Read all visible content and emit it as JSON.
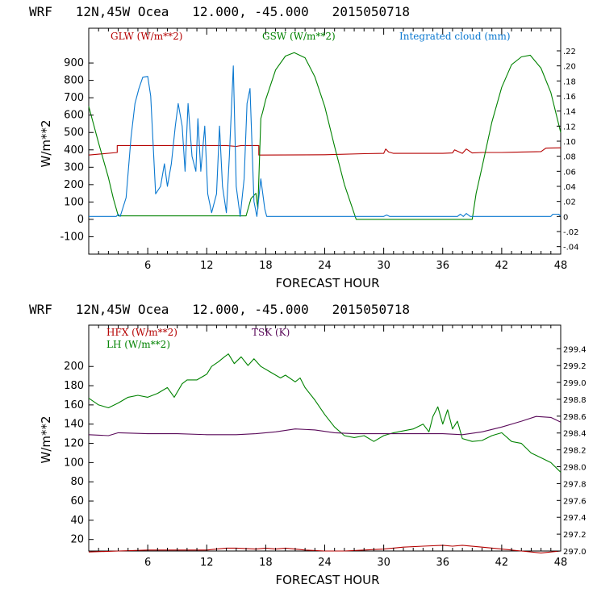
{
  "chart_data": [
    {
      "type": "line",
      "title": "WRF   12N,45W Ocea   12.000, -45.000   2015050718",
      "xlabel": "FORECAST HOUR",
      "ylabel": "W/m**2",
      "xlim": [
        0,
        48
      ],
      "xticks": [
        6,
        12,
        18,
        24,
        30,
        36,
        42,
        48
      ],
      "ylim": [
        -200,
        1100
      ],
      "yticks": [
        -100,
        0,
        100,
        200,
        300,
        400,
        500,
        600,
        700,
        800,
        900
      ],
      "y2lim": [
        -0.05,
        0.25
      ],
      "y2ticks": [
        "-.04",
        "-.02",
        "0",
        ".02",
        ".04",
        ".06",
        ".08",
        ".10",
        ".12",
        ".14",
        ".16",
        ".18",
        ".20",
        ".22"
      ],
      "y2ticks_values": [
        -0.04,
        -0.02,
        0,
        0.02,
        0.04,
        0.06,
        0.08,
        0.1,
        0.12,
        0.14,
        0.16,
        0.18,
        0.2,
        0.22
      ],
      "series": [
        {
          "name": "GLW (W/m**2)",
          "color": "#b40000",
          "axis": "left",
          "x": [
            0,
            2.9,
            2.9,
            9,
            14,
            15,
            15.5,
            17.3,
            17.3,
            24,
            28,
            30,
            30.2,
            30.5,
            31,
            36,
            37,
            37.2,
            38,
            38.4,
            39,
            40,
            42,
            46,
            46.5,
            48
          ],
          "y": [
            370,
            385,
            425,
            425,
            425,
            420,
            425,
            425,
            370,
            372,
            378,
            380,
            405,
            388,
            380,
            380,
            382,
            400,
            380,
            405,
            382,
            385,
            385,
            390,
            410,
            412
          ]
        },
        {
          "name": "GSW (W/m**2)",
          "color": "#008200",
          "axis": "left",
          "x": [
            0,
            1,
            2,
            2.5,
            3,
            16,
            16.5,
            17,
            17.2,
            17.5,
            17.7,
            18,
            19,
            20,
            20.9,
            22,
            23,
            24,
            25,
            26,
            27.2,
            39,
            39.4,
            40,
            41,
            42,
            43,
            44,
            44.9,
            46,
            47,
            48
          ],
          "y": [
            650,
            440,
            240,
            120,
            20,
            20,
            120,
            150,
            60,
            580,
            620,
            690,
            860,
            940,
            960,
            930,
            820,
            650,
            420,
            200,
            0,
            0,
            150,
            300,
            560,
            760,
            890,
            935,
            945,
            870,
            730,
            500
          ]
        },
        {
          "name": "Integrated cloud (mm)",
          "color": "#0a78d0",
          "axis": "right",
          "x": [
            0,
            2.8,
            3.0,
            3.2,
            3.8,
            4.3,
            4.7,
            5.1,
            5.5,
            6.0,
            6.3,
            6.8,
            7.3,
            7.7,
            8.0,
            8.4,
            8.8,
            9.1,
            9.5,
            9.8,
            10.1,
            10.5,
            10.9,
            11.1,
            11.4,
            11.8,
            12.1,
            12.5,
            13.0,
            13.3,
            13.6,
            14.0,
            14.3,
            14.7,
            15.0,
            15.4,
            15.8,
            16.1,
            16.4,
            16.8,
            17.1,
            17.5,
            17.9,
            18.1,
            30,
            30.3,
            30.6,
            37.5,
            37.8,
            38.1,
            38.4,
            38.8,
            39.2,
            47,
            47.2,
            47.8,
            48
          ],
          "y": [
            0.0,
            0.0,
            0.003,
            0.0,
            0.025,
            0.105,
            0.15,
            0.17,
            0.185,
            0.186,
            0.16,
            0.03,
            0.04,
            0.07,
            0.04,
            0.07,
            0.12,
            0.15,
            0.12,
            0.06,
            0.15,
            0.08,
            0.06,
            0.13,
            0.06,
            0.12,
            0.03,
            0.005,
            0.03,
            0.12,
            0.04,
            0.005,
            0.08,
            0.2,
            0.04,
            0.0,
            0.05,
            0.15,
            0.17,
            0.02,
            0.0,
            0.05,
            0.01,
            0.0,
            0.0,
            0.002,
            0.0,
            0.0,
            0.003,
            0.0,
            0.004,
            0.0,
            0.0,
            0.0,
            0.003,
            0.003,
            0.0
          ]
        }
      ]
    },
    {
      "type": "line",
      "title": "WRF   12N,45W Ocea   12.000, -45.000   2015050718",
      "xlabel": "FORECAST HOUR",
      "ylabel": "W/m**2",
      "xlim": [
        0,
        48
      ],
      "xticks": [
        6,
        12,
        18,
        24,
        30,
        36,
        42,
        48
      ],
      "ylim": [
        8,
        243
      ],
      "yticks": [
        20,
        40,
        60,
        80,
        100,
        120,
        140,
        160,
        180,
        200
      ],
      "y2lim": [
        297.0,
        299.68
      ],
      "y2ticks": [
        "297.0",
        "297.2",
        "297.4",
        "297.6",
        "297.8",
        "298.0",
        "298.2",
        "298.4",
        "298.6",
        "298.8",
        "299.0",
        "299.2",
        "299.4"
      ],
      "y2ticks_values": [
        297.0,
        297.2,
        297.4,
        297.6,
        297.8,
        298.0,
        298.2,
        298.4,
        298.6,
        298.8,
        299.0,
        299.2,
        299.4
      ],
      "series": [
        {
          "name": "HFX (W/m**2)",
          "color": "#b40000",
          "axis": "left",
          "x": [
            0,
            3,
            6,
            9,
            12,
            13,
            14,
            15,
            17,
            18,
            19,
            20,
            21,
            22,
            24,
            26,
            28,
            30,
            32,
            34,
            36,
            37,
            38,
            40,
            42,
            44,
            46,
            48
          ],
          "y": [
            7,
            8,
            9,
            9,
            9,
            10,
            11,
            11,
            10,
            11,
            10,
            11,
            10,
            9,
            8,
            8,
            9,
            10,
            12,
            13,
            14,
            13,
            14,
            12,
            10,
            8,
            6,
            8
          ]
        },
        {
          "name": "LH (W/m**2)",
          "color": "#008200",
          "axis": "left",
          "x": [
            0,
            1,
            2,
            3,
            4,
            5,
            6,
            7,
            8,
            8.7,
            9.5,
            10,
            11,
            12,
            12.5,
            13.2,
            13.8,
            14.2,
            14.8,
            15.5,
            16.2,
            16.8,
            17.5,
            18.5,
            19.5,
            20,
            21,
            21.5,
            22,
            23,
            24,
            25,
            26,
            27,
            28,
            29,
            30,
            31,
            32,
            33,
            34,
            34.6,
            35,
            35.5,
            36,
            36.5,
            37,
            37.5,
            38,
            39,
            40,
            41,
            42,
            43,
            44,
            45,
            46,
            47,
            48
          ],
          "y": [
            167,
            160,
            157,
            162,
            168,
            170,
            168,
            172,
            178,
            168,
            182,
            186,
            186,
            192,
            200,
            205,
            210,
            213,
            203,
            210,
            201,
            208,
            200,
            194,
            188,
            191,
            184,
            188,
            178,
            165,
            150,
            137,
            128,
            126,
            128,
            122,
            128,
            131,
            133,
            135,
            140,
            132,
            148,
            158,
            140,
            155,
            135,
            143,
            125,
            122,
            123,
            128,
            131,
            122,
            120,
            110,
            105,
            100,
            90
          ]
        },
        {
          "name": "TSK (K)",
          "color": "#5a0a5a",
          "axis": "left",
          "x": [
            0,
            2,
            3,
            6,
            9,
            12,
            15,
            17,
            19,
            21,
            23,
            25,
            27,
            30,
            33,
            36,
            38,
            40,
            42,
            44,
            45.5,
            47,
            48
          ],
          "y": [
            129,
            128,
            131,
            130,
            130,
            129,
            129,
            130,
            132,
            135,
            134,
            131,
            130,
            130,
            130,
            130,
            129,
            132,
            137,
            143,
            148,
            147,
            142
          ]
        }
      ]
    }
  ]
}
